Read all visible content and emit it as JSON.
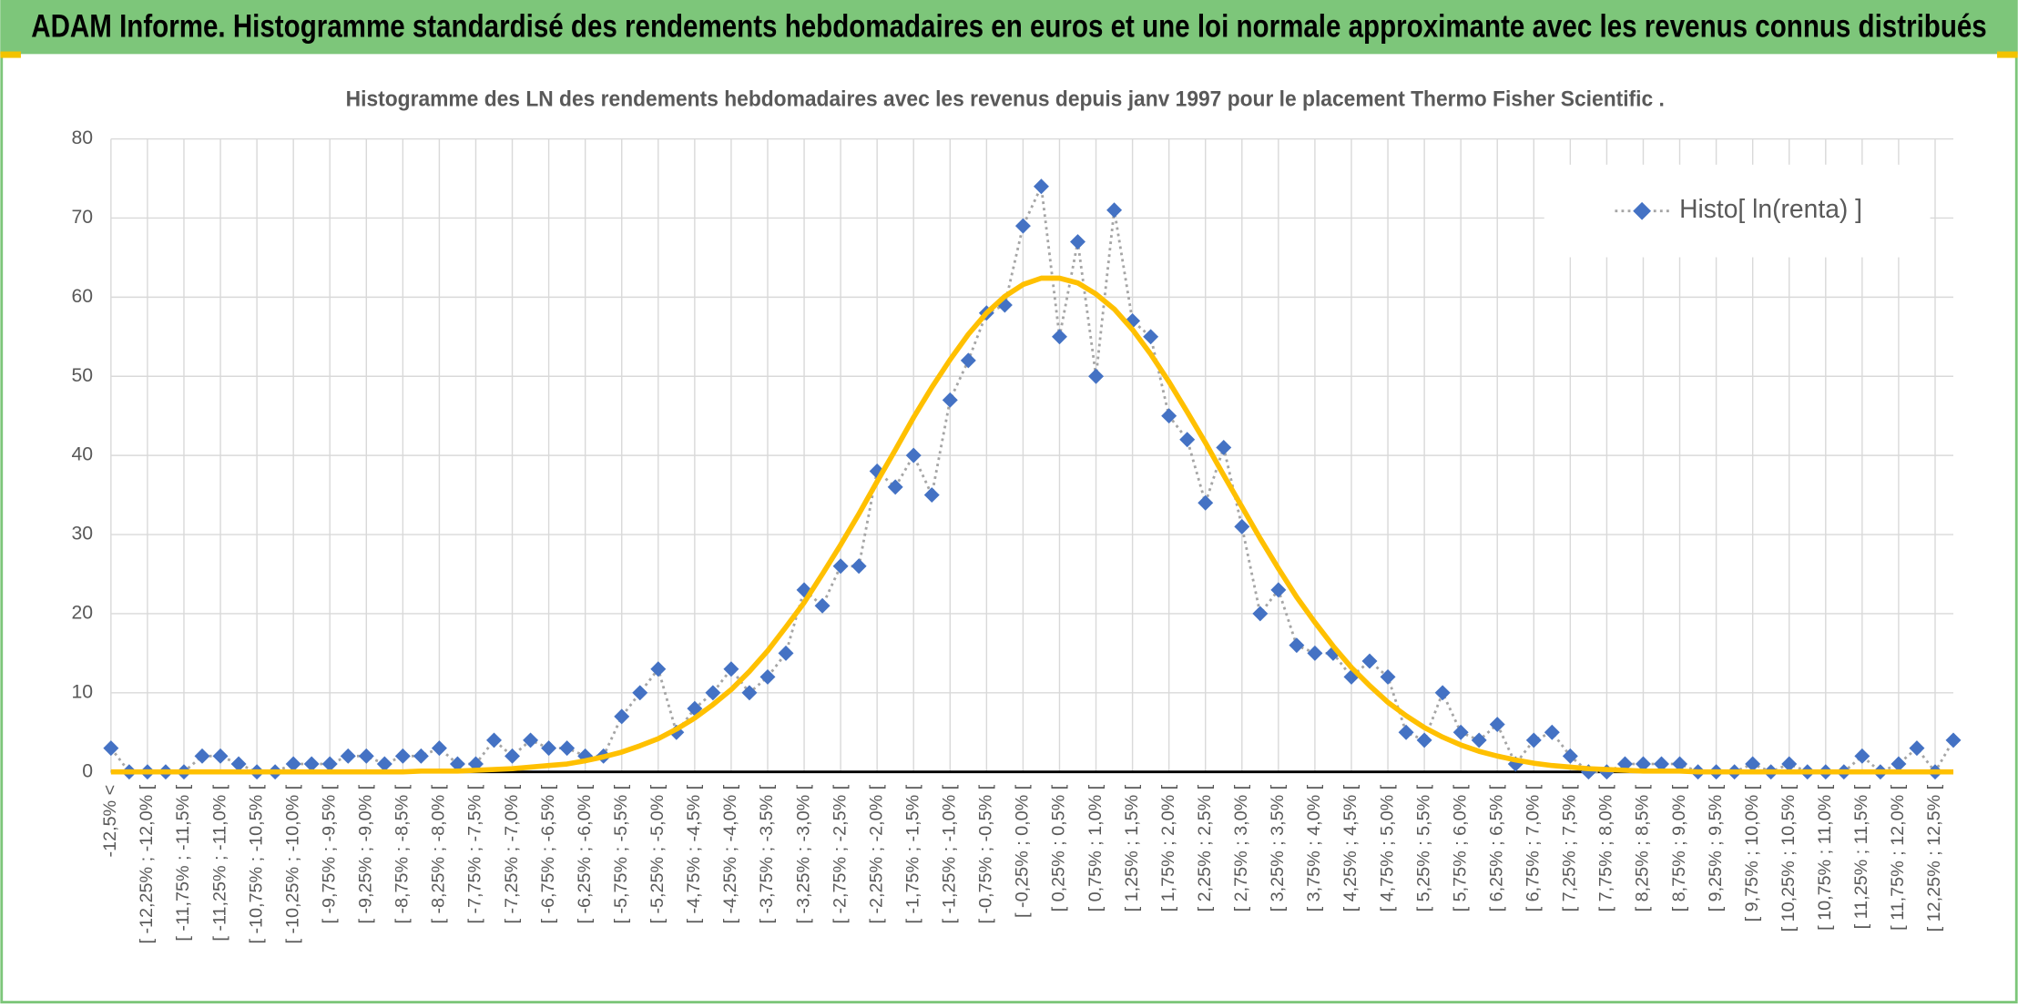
{
  "chart_data": {
    "type": "line",
    "title": "ADAM Informe. Histogramme standardisé des rendements hebdomadaires en euros et une loi normale approximante avec les revenus connus distribués",
    "subtitle": "Histogramme des LN des rendements hebdomadaires avec les revenus depuis janv 1997 pour le placement Thermo Fisher Scientific .",
    "categories": [
      "-12,5% <",
      null,
      "[ -12,25% ; -12,0% [",
      null,
      "[ -11,75% ; -11,5% [",
      null,
      "[ -11,25% ; -11,0% [",
      null,
      "[ -10,75% ; -10,5% [",
      null,
      "[ -10,25% ; -10,0% [",
      null,
      "[ -9,75% ; -9,5% [",
      null,
      "[ -9,25% ; -9,0% [",
      null,
      "[ -8,75% ; -8,5% [",
      null,
      "[ -8,25% ; -8,0% [",
      null,
      "[ -7,75% ; -7,5% [",
      null,
      "[ -7,25% ; -7,0% [",
      null,
      "[ -6,75% ; -6,5% [",
      null,
      "[ -6,25% ; -6,0% [",
      null,
      "[ -5,75% ; -5,5% [",
      null,
      "[ -5,25% ; -5,0% [",
      null,
      "[ -4,75% ; -4,5% [",
      null,
      "[ -4,25% ; -4,0% [",
      null,
      "[ -3,75% ; -3,5% [",
      null,
      "[ -3,25% ; -3,0% [",
      null,
      "[ -2,75% ; -2,5% [",
      null,
      "[ -2,25% ; -2,0% [",
      null,
      "[ -1,75% ; -1,5% [",
      null,
      "[ -1,25% ; -1,0% [",
      null,
      "[ -0,75% ; -0,5% [",
      null,
      "[ -0,25% ; 0,0% [",
      null,
      "[ 0,25% ; 0,5% [",
      null,
      "[ 0,75% ; 1,0% [",
      null,
      "[ 1,25% ; 1,5% [",
      null,
      "[ 1,75% ; 2,0% [",
      null,
      "[ 2,25% ; 2,5% [",
      null,
      "[ 2,75% ; 3,0% [",
      null,
      "[ 3,25% ; 3,5% [",
      null,
      "[ 3,75% ; 4,0% [",
      null,
      "[ 4,25% ; 4,5% [",
      null,
      "[ 4,75% ; 5,0% [",
      null,
      "[ 5,25% ; 5,5% [",
      null,
      "[ 5,75% ; 6,0% [",
      null,
      "[ 6,25% ; 6,5% [",
      null,
      "[ 6,75% ; 7,0% [",
      null,
      "[ 7,25% ; 7,5% [",
      null,
      "[ 7,75% ; 8,0% [",
      null,
      "[ 8,25% ; 8,5% [",
      null,
      "[ 8,75% ; 9,0% [",
      null,
      "[ 9,25% ; 9,5% [",
      null,
      "[ 9,75% ; 10,0% [",
      null,
      "[ 10,25% ; 10,5% [",
      null,
      "[ 10,75% ; 11,0% [",
      null,
      "[ 11,25% ; 11,5% [",
      null,
      "[ 11,75% ; 12,0% [",
      null,
      "[ 12,25% ; 12,5% [",
      null
    ],
    "series": [
      {
        "name": "Histo[ ln(renta) ]",
        "color": "#4472c4",
        "line_color": "#a5a5a5",
        "marker": "diamond",
        "values": [
          3,
          0,
          0,
          0,
          0,
          2,
          2,
          1,
          0,
          0,
          1,
          1,
          1,
          2,
          2,
          1,
          2,
          2,
          3,
          1,
          1,
          4,
          2,
          4,
          3,
          3,
          2,
          2,
          7,
          10,
          13,
          5,
          8,
          10,
          13,
          10,
          12,
          15,
          23,
          21,
          26,
          26,
          38,
          36,
          40,
          35,
          47,
          52,
          58,
          59,
          69,
          74,
          55,
          67,
          50,
          71,
          57,
          55,
          45,
          42,
          34,
          41,
          31,
          20,
          23,
          16,
          15,
          15,
          12,
          14,
          12,
          5,
          4,
          10,
          5,
          4,
          6,
          1,
          4,
          5,
          2,
          0,
          0,
          1,
          1,
          1,
          1,
          0,
          0,
          0,
          1,
          0,
          1,
          0,
          0,
          0,
          2,
          0,
          1,
          3,
          0,
          4
        ]
      },
      {
        "color": "#ffc000",
        "values": [
          0,
          0,
          0,
          0,
          0,
          0,
          0,
          0,
          0,
          0,
          0,
          0,
          0,
          0,
          0,
          0,
          0,
          0.1,
          0.1,
          0.1,
          0.2,
          0.3,
          0.4,
          0.6,
          0.8,
          1.0,
          1.4,
          1.9,
          2.5,
          3.3,
          4.2,
          5.4,
          6.8,
          8.5,
          10.4,
          12.7,
          15.3,
          18.3,
          21.4,
          25.0,
          28.7,
          32.6,
          36.7,
          40.7,
          44.8,
          48.6,
          52.1,
          55.3,
          58.0,
          60.1,
          61.6,
          62.4,
          62.4,
          61.8,
          60.4,
          58.5,
          55.9,
          52.8,
          49.3,
          45.5,
          41.6,
          37.5,
          33.5,
          29.5,
          25.7,
          22.1,
          18.9,
          15.9,
          13.2,
          10.9,
          8.8,
          7.1,
          5.6,
          4.4,
          3.4,
          2.6,
          2.0,
          1.5,
          1.1,
          0.8,
          0.6,
          0.4,
          0.3,
          0.2,
          0.1,
          0.1,
          0.1,
          0,
          0,
          0,
          0,
          0,
          0,
          0,
          0,
          0,
          0,
          0,
          0,
          0,
          0,
          0
        ]
      }
    ],
    "ylim": [
      0,
      80
    ],
    "yticks": [
      0,
      10,
      20,
      30,
      40,
      50,
      60,
      70,
      80
    ],
    "grid": true,
    "legend": "upper right"
  }
}
